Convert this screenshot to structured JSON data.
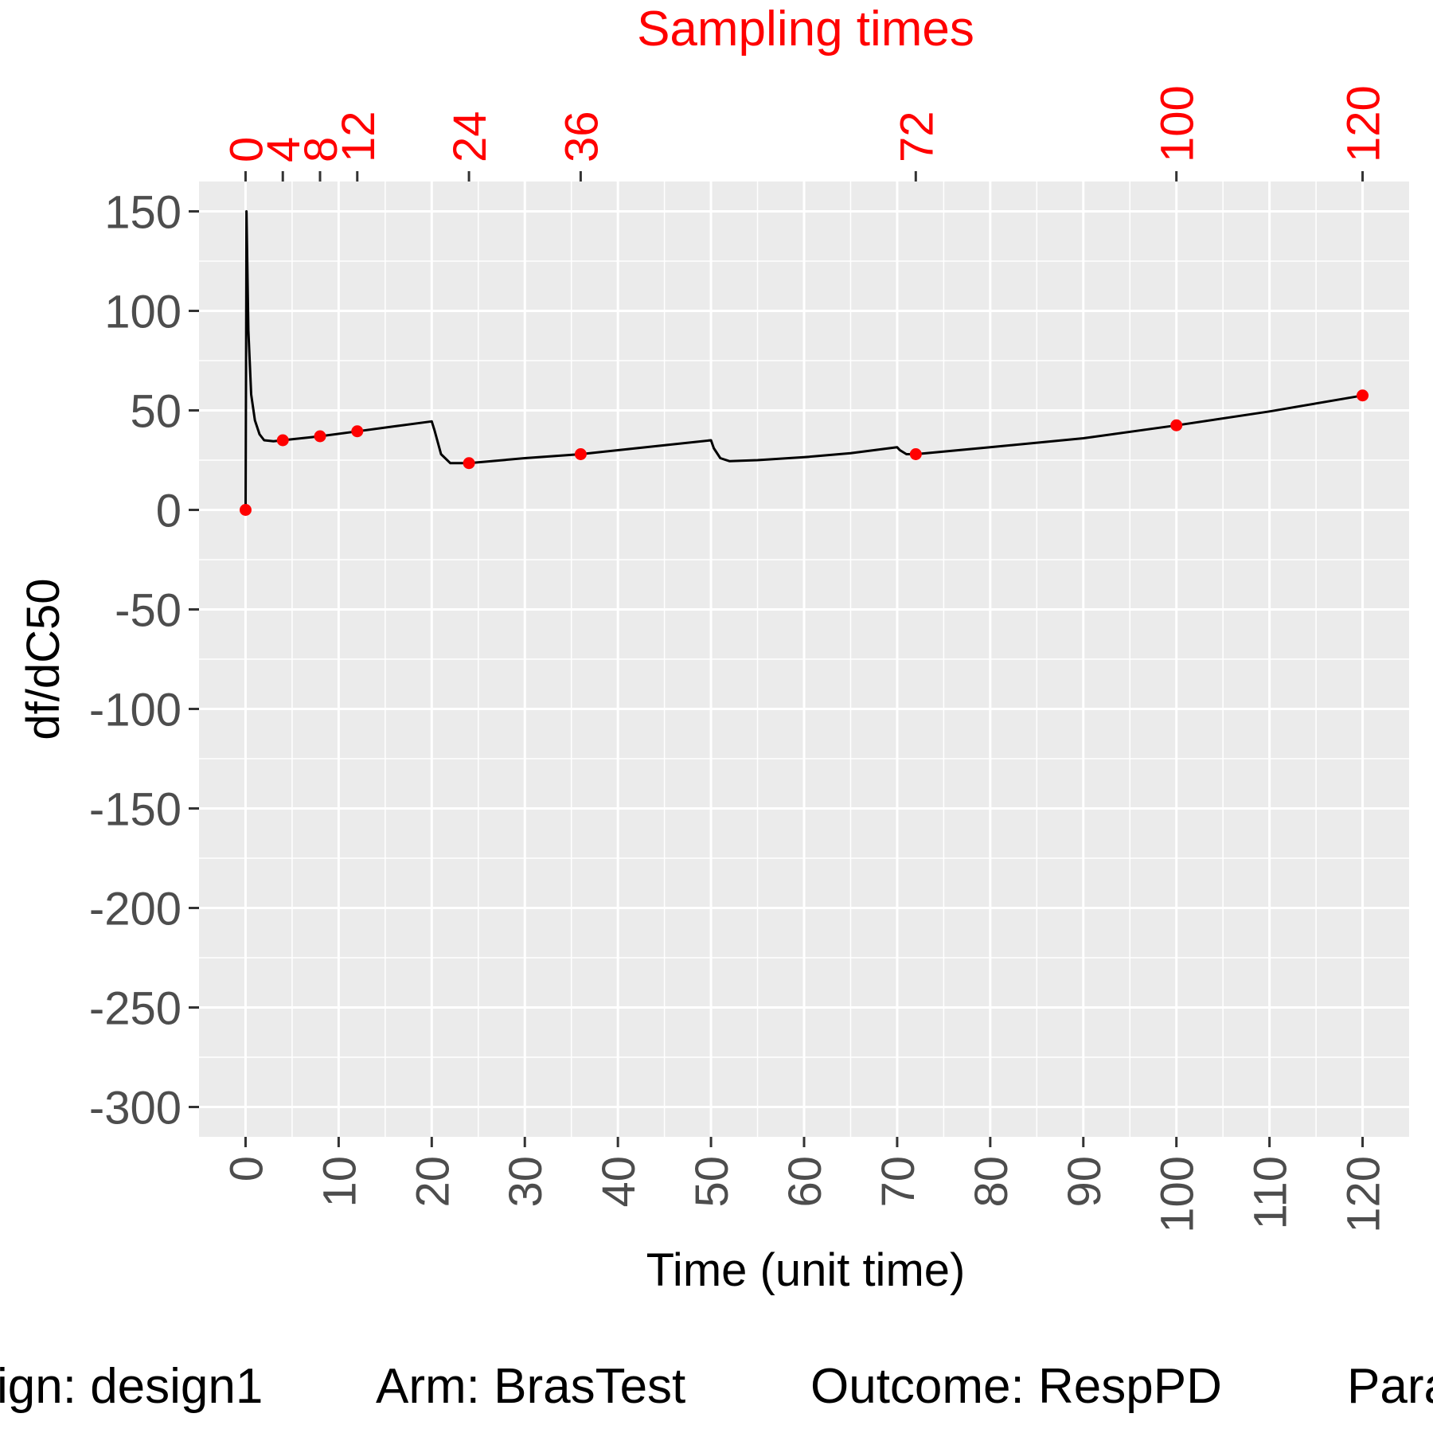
{
  "chart_data": {
    "type": "line",
    "xlabel": "Time (unit time)",
    "ylabel": "df/dC50",
    "top_axis_title": "Sampling times",
    "xlim": [
      -5,
      125
    ],
    "ylim": [
      -315,
      165
    ],
    "x_ticks": [
      0,
      10,
      20,
      30,
      40,
      50,
      60,
      70,
      80,
      90,
      100,
      110,
      120
    ],
    "y_ticks": [
      150,
      100,
      50,
      0,
      -50,
      -100,
      -150,
      -200,
      -250,
      -300
    ],
    "top_ticks": [
      0,
      4,
      8,
      12,
      24,
      36,
      72,
      100,
      120
    ],
    "grid": true,
    "background": "#ebebeb",
    "line_color": "#000000",
    "point_color": "#ff0000",
    "series": [
      {
        "type": "line",
        "x": [
          0,
          0.1,
          0.3,
          0.6,
          1,
          1.5,
          2,
          3,
          4,
          8,
          12,
          16,
          20,
          20.3,
          21,
          22,
          24,
          30,
          36,
          42,
          50,
          50.3,
          51,
          52,
          55,
          60,
          65,
          70,
          70.3,
          71,
          72,
          80,
          90,
          100,
          110,
          120
        ],
        "y": [
          0,
          150,
          90,
          58,
          45,
          38,
          35,
          34.5,
          35,
          37,
          39.5,
          42,
          44.5,
          40,
          28,
          23.5,
          23.5,
          26,
          28,
          31,
          35,
          31,
          26,
          24.5,
          25,
          26.5,
          28.5,
          31.5,
          30,
          28,
          28,
          31.5,
          36,
          42.5,
          49.5,
          57.5
        ]
      },
      {
        "type": "scatter",
        "x": [
          0,
          4,
          8,
          12,
          24,
          36,
          72,
          100,
          120
        ],
        "y": [
          0,
          35,
          37,
          39.5,
          23.5,
          28,
          28,
          42.5,
          57.5
        ]
      }
    ],
    "caption": [
      "ign: design1",
      "Arm: BrasTest",
      "Outcome: RespPD",
      "Para"
    ]
  }
}
